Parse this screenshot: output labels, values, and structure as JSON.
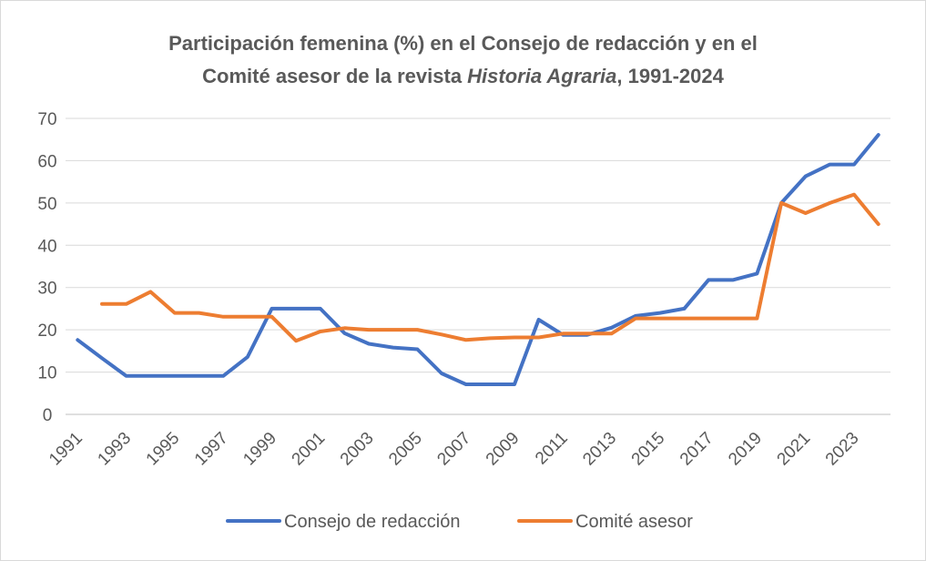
{
  "chart_data": {
    "type": "line",
    "title": {
      "part1": "Participación femenina (%) en el Consejo de redacción y en el",
      "part2": "Comité asesor de la revista ",
      "italic": "Historia Agraria",
      "part3": ", 1991-2024"
    },
    "xlabel": "",
    "ylabel": "",
    "ylim": [
      0,
      70
    ],
    "yticks": [
      "0",
      "10",
      "20",
      "30",
      "40",
      "50",
      "60",
      "70"
    ],
    "grid": true,
    "legend_position": "bottom",
    "x": [
      1991,
      1992,
      1993,
      1994,
      1995,
      1996,
      1997,
      1998,
      1999,
      2000,
      2001,
      2002,
      2003,
      2004,
      2005,
      2006,
      2007,
      2008,
      2009,
      2010,
      2011,
      2012,
      2013,
      2014,
      2015,
      2016,
      2017,
      2018,
      2019,
      2020,
      2021,
      2022,
      2023,
      2024
    ],
    "xtick_labels": [
      "1991",
      "1993",
      "1995",
      "1997",
      "1999",
      "2001",
      "2003",
      "2005",
      "2007",
      "2009",
      "2011",
      "2013",
      "2015",
      "2017",
      "2019",
      "2021",
      "2023"
    ],
    "series": [
      {
        "name": "Consejo de redacción",
        "color": "#4472c4",
        "values": [
          17.6,
          13.3,
          9.1,
          9.1,
          9.1,
          9.1,
          9.1,
          13.6,
          25,
          25,
          25,
          19.2,
          16.7,
          15.8,
          15.4,
          9.7,
          7.1,
          7.1,
          7.1,
          22.4,
          18.8,
          18.8,
          20.5,
          23.3,
          24,
          25,
          31.8,
          31.8,
          33.3,
          50,
          56.3,
          59.1,
          59.1,
          66.1
        ]
      },
      {
        "name": "Comité asesor",
        "color": "#ed7d31",
        "values": [
          null,
          26.1,
          26.1,
          29,
          24,
          24,
          23.1,
          23.1,
          23.1,
          17.4,
          19.6,
          20.4,
          20,
          20,
          20,
          18.9,
          17.6,
          18,
          18.2,
          18.2,
          19.1,
          19.1,
          19.1,
          22.7,
          22.7,
          22.7,
          22.7,
          22.7,
          22.7,
          50,
          47.6,
          50,
          52,
          45
        ]
      }
    ]
  }
}
